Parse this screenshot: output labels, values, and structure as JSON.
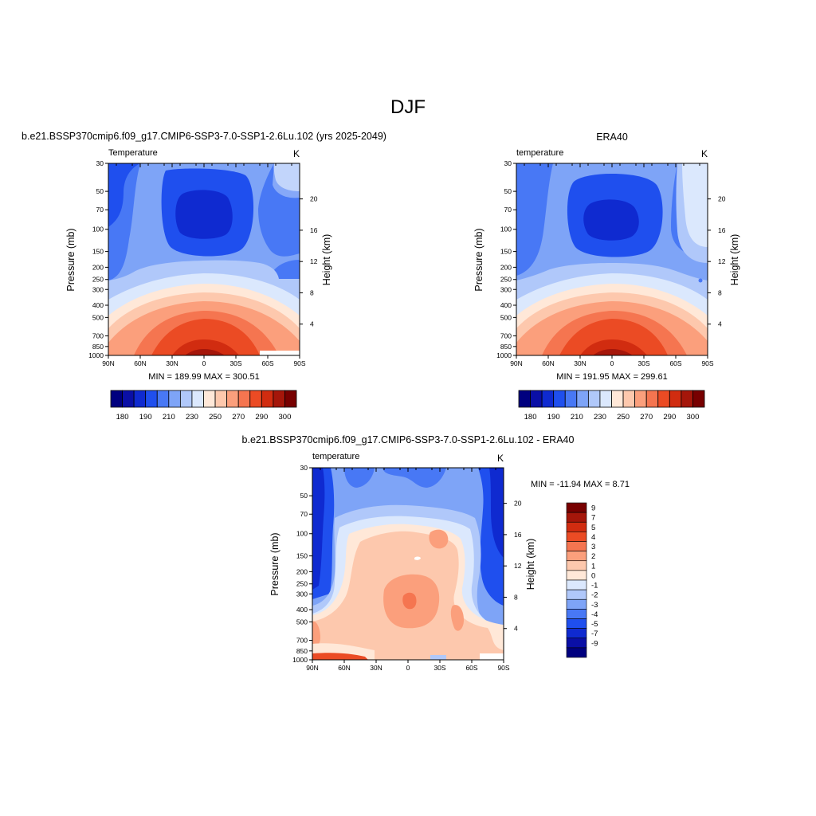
{
  "main_title": "DJF",
  "colors": {
    "ramp": [
      "#00007f",
      "#0a0fa6",
      "#0f2ad0",
      "#1f4fee",
      "#4878f5",
      "#7ea4f7",
      "#b0c8fa",
      "#dbe8fd",
      "#ffe8d8",
      "#fdc8ad",
      "#fb9f7c",
      "#f57550",
      "#eb4b24",
      "#d12c10",
      "#a5160a",
      "#780000"
    ]
  },
  "chart_data": [
    {
      "type": "heatmap",
      "title": "b.e21.BSSP370cmip6.f09_g17.CMIP6-SSP3-7.0-SSP1-2.6Lu.102 (yrs 2025-2049)",
      "variable_label": "Temperature",
      "units_label": "K",
      "ylabel": "Pressure (mb)",
      "ylabel_right": "Height (km)",
      "x_ticks": [
        "90N",
        "60N",
        "30N",
        "0",
        "30S",
        "60S",
        "90S"
      ],
      "y_ticks": [
        "30",
        "50",
        "70",
        "100",
        "150",
        "200",
        "250",
        "300",
        "400",
        "500",
        "700",
        "850",
        "1000"
      ],
      "y_ticks_right": [
        "20",
        "16",
        "12",
        "8",
        "4"
      ],
      "stats": "MIN = 189.99  MAX = 300.51",
      "colorbar_labels": [
        "180",
        "190",
        "210",
        "230",
        "250",
        "270",
        "290",
        "300"
      ],
      "value_range": [
        189.99,
        300.51
      ]
    },
    {
      "type": "heatmap",
      "title": "ERA40",
      "variable_label": "temperature",
      "units_label": "K",
      "ylabel": "Pressure (mb)",
      "ylabel_right": "Height (km)",
      "x_ticks": [
        "90N",
        "60N",
        "30N",
        "0",
        "30S",
        "60S",
        "90S"
      ],
      "y_ticks": [
        "30",
        "50",
        "70",
        "100",
        "150",
        "200",
        "250",
        "300",
        "400",
        "500",
        "700",
        "850",
        "1000"
      ],
      "y_ticks_right": [
        "20",
        "16",
        "12",
        "8",
        "4"
      ],
      "stats": "MIN = 191.95  MAX = 299.61",
      "colorbar_labels": [
        "180",
        "190",
        "210",
        "230",
        "250",
        "270",
        "290",
        "300"
      ],
      "value_range": [
        191.95,
        299.61
      ]
    },
    {
      "type": "heatmap",
      "title": "b.e21.BSSP370cmip6.f09_g17.CMIP6-SSP3-7.0-SSP1-2.6Lu.102 - ERA40",
      "variable_label": "temperature",
      "units_label": "K",
      "ylabel": "Pressure (mb)",
      "ylabel_right": "Height (km)",
      "x_ticks": [
        "90N",
        "60N",
        "30N",
        "0",
        "30S",
        "60S",
        "90S"
      ],
      "y_ticks": [
        "30",
        "50",
        "70",
        "100",
        "150",
        "200",
        "250",
        "300",
        "400",
        "500",
        "700",
        "850",
        "1000"
      ],
      "y_ticks_right": [
        "20",
        "16",
        "12",
        "8",
        "4"
      ],
      "stats": "MIN = -11.94  MAX =   8.71",
      "colorbar_labels": [
        "9",
        "7",
        "5",
        "4",
        "3",
        "2",
        "1",
        "0",
        "-1",
        "-2",
        "-3",
        "-4",
        "-5",
        "-7",
        "-9"
      ],
      "value_range": [
        -11.94,
        8.71
      ]
    }
  ]
}
